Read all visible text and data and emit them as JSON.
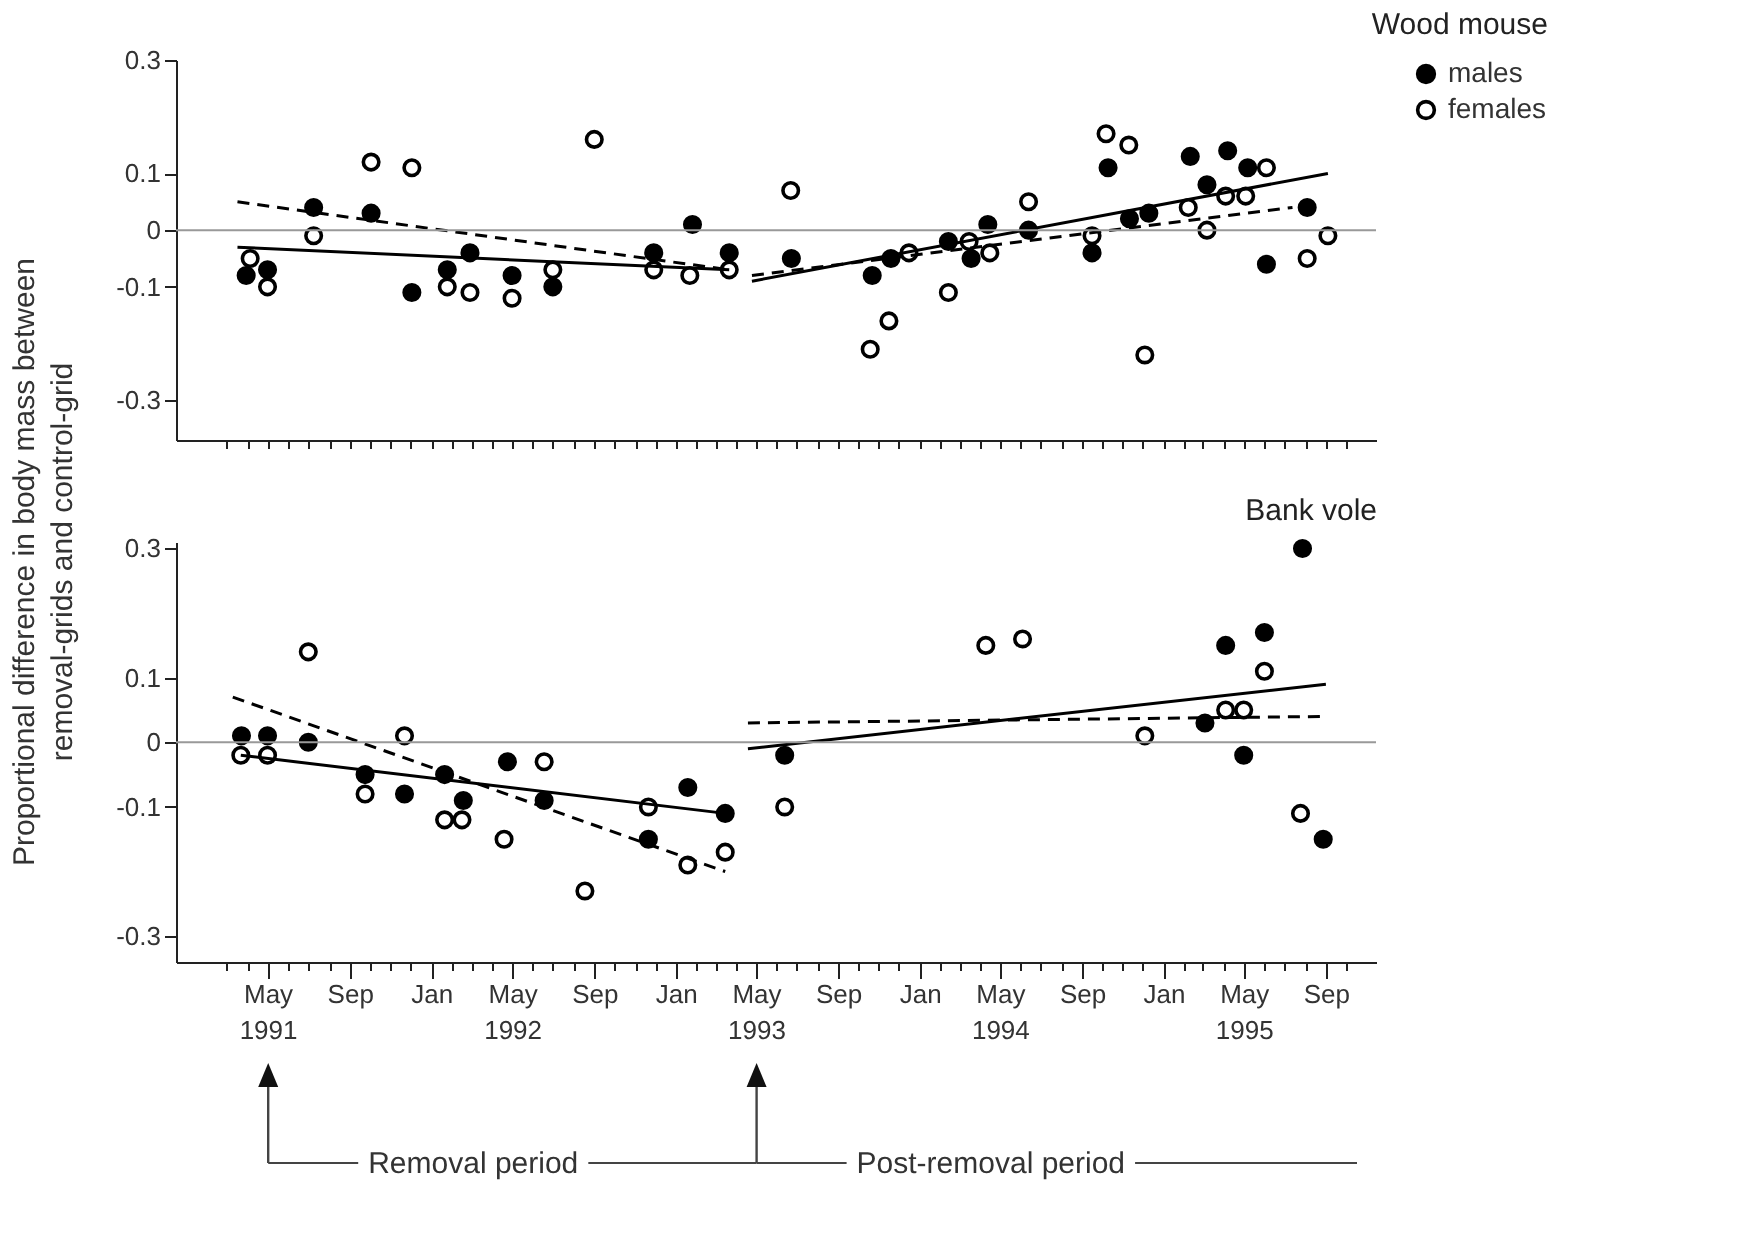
{
  "chart_data": [
    {
      "type": "scatter",
      "title": "Wood mouse",
      "ylabel": "Proportional difference in body mass between removal-grids and control-grid",
      "xlim": [
        "1990-12-15",
        "1995-11-15"
      ],
      "ylim": [
        -0.37,
        0.3
      ],
      "yticks": [
        0.3,
        0.1,
        0,
        -0.1,
        -0.3
      ],
      "tick_labels": "y",
      "legend": "right",
      "grid": false,
      "xticks": [
        {
          "value": "1991-03-01",
          "label": null
        },
        {
          "value": "1991-04-01",
          "label": null
        },
        {
          "value": "1991-05-01",
          "label": null
        },
        {
          "value": "1991-06-01",
          "label": null
        },
        {
          "value": "1991-07-01",
          "label": null
        },
        {
          "value": "1991-08-01",
          "label": null
        },
        {
          "value": "1991-09-01",
          "label": null
        },
        {
          "value": "1991-10-01",
          "label": null
        },
        {
          "value": "1991-11-01",
          "label": null
        },
        {
          "value": "1991-12-01",
          "label": null
        },
        {
          "value": "1992-01-01",
          "label": null
        },
        {
          "value": "1992-02-01",
          "label": null
        },
        {
          "value": "1992-03-01",
          "label": null
        },
        {
          "value": "1992-04-01",
          "label": null
        },
        {
          "value": "1992-05-01",
          "label": null
        },
        {
          "value": "1992-06-01",
          "label": null
        },
        {
          "value": "1992-07-01",
          "label": null
        },
        {
          "value": "1992-08-01",
          "label": null
        },
        {
          "value": "1992-09-01",
          "label": null
        },
        {
          "value": "1992-10-01",
          "label": null
        },
        {
          "value": "1992-11-01",
          "label": null
        },
        {
          "value": "1992-12-01",
          "label": null
        },
        {
          "value": "1993-01-01",
          "label": null
        },
        {
          "value": "1993-02-01",
          "label": null
        },
        {
          "value": "1993-03-01",
          "label": null
        },
        {
          "value": "1993-04-01",
          "label": null
        },
        {
          "value": "1993-05-01",
          "label": null
        },
        {
          "value": "1993-06-01",
          "label": null
        },
        {
          "value": "1993-07-01",
          "label": null
        },
        {
          "value": "1993-08-01",
          "label": null
        },
        {
          "value": "1993-09-01",
          "label": null
        },
        {
          "value": "1993-10-01",
          "label": null
        },
        {
          "value": "1993-11-01",
          "label": null
        },
        {
          "value": "1993-12-01",
          "label": null
        },
        {
          "value": "1994-01-01",
          "label": null
        },
        {
          "value": "1994-02-01",
          "label": null
        },
        {
          "value": "1994-03-01",
          "label": null
        },
        {
          "value": "1994-04-01",
          "label": null
        },
        {
          "value": "1994-05-01",
          "label": null
        },
        {
          "value": "1994-06-01",
          "label": null
        },
        {
          "value": "1994-07-01",
          "label": null
        },
        {
          "value": "1994-08-01",
          "label": null
        },
        {
          "value": "1994-09-01",
          "label": null
        },
        {
          "value": "1994-10-01",
          "label": null
        },
        {
          "value": "1994-11-01",
          "label": null
        },
        {
          "value": "1994-12-01",
          "label": null
        },
        {
          "value": "1995-01-01",
          "label": null
        },
        {
          "value": "1995-02-01",
          "label": null
        },
        {
          "value": "1995-03-01",
          "label": null
        },
        {
          "value": "1995-04-01",
          "label": null
        },
        {
          "value": "1995-05-01",
          "label": null
        },
        {
          "value": "1995-06-01",
          "label": null
        },
        {
          "value": "1995-07-01",
          "label": null
        },
        {
          "value": "1995-08-01",
          "label": null
        },
        {
          "value": "1995-09-01",
          "label": null
        },
        {
          "value": "1995-10-01",
          "label": null
        }
      ],
      "ref_lines": [
        {
          "axis": "y",
          "value": 0,
          "color": "#999999"
        }
      ],
      "series": [
        {
          "name": "males",
          "type": "scatter",
          "color": "#000000",
          "marker": "circle",
          "x": [
            "1991-03-30",
            "1991-05-01",
            "1991-07-09",
            "1991-10-03",
            "1991-12-03",
            "1992-01-25",
            "1992-02-28",
            "1992-05-01",
            "1992-07-01",
            "1992-11-29",
            "1993-01-26",
            "1993-03-22",
            "1993-06-23",
            "1993-10-22",
            "1993-11-19",
            "1994-02-13",
            "1994-03-19",
            "1994-04-13",
            "1994-06-13",
            "1994-09-16",
            "1994-10-10",
            "1994-11-11",
            "1994-12-10",
            "1995-02-10",
            "1995-03-07",
            "1995-04-07",
            "1995-05-07",
            "1995-06-04",
            "1995-08-04"
          ],
          "values": [
            -0.08,
            -0.07,
            0.04,
            0.03,
            -0.11,
            -0.07,
            -0.04,
            -0.08,
            -0.1,
            -0.04,
            0.01,
            -0.04,
            -0.05,
            -0.08,
            -0.05,
            -0.02,
            -0.05,
            0.01,
            0.0,
            -0.04,
            0.11,
            0.02,
            0.03,
            0.13,
            0.08,
            0.14,
            0.11,
            -0.06,
            0.04
          ]
        },
        {
          "name": "females",
          "type": "scatter",
          "color": "#ffffff",
          "marker": "circle",
          "x": [
            "1991-04-05",
            "1991-05-01",
            "1991-07-09",
            "1991-10-03",
            "1991-12-03",
            "1992-01-25",
            "1992-02-28",
            "1992-05-01",
            "1992-07-01",
            "1992-09-01",
            "1992-11-29",
            "1993-01-22",
            "1993-03-22",
            "1993-06-22",
            "1993-10-19",
            "1993-11-16",
            "1993-12-16",
            "1994-02-13",
            "1994-03-16",
            "1994-04-16",
            "1994-06-13",
            "1994-09-16",
            "1994-10-07",
            "1994-11-10",
            "1994-12-04",
            "1995-02-07",
            "1995-03-07",
            "1995-04-04",
            "1995-05-04",
            "1995-06-04",
            "1995-08-04",
            "1995-09-04"
          ],
          "values": [
            -0.05,
            -0.1,
            -0.01,
            0.12,
            0.11,
            -0.1,
            -0.11,
            -0.12,
            -0.07,
            0.16,
            -0.07,
            -0.08,
            -0.07,
            0.07,
            -0.21,
            -0.16,
            -0.04,
            -0.11,
            -0.02,
            -0.04,
            0.05,
            -0.01,
            0.17,
            0.15,
            -0.22,
            0.04,
            0.0,
            0.06,
            0.06,
            0.11,
            -0.05,
            -0.01
          ]
        },
        {
          "type": "line",
          "color": "#000000",
          "line_style": "solid",
          "x": [
            "1991-03-17",
            "1993-03-22"
          ],
          "values": [
            -0.03,
            -0.07
          ]
        },
        {
          "type": "line",
          "color": "#000000",
          "line_style": "solid",
          "x": [
            "1993-04-25",
            "1995-09-04"
          ],
          "values": [
            -0.09,
            0.1
          ]
        },
        {
          "type": "line",
          "color": "#000000",
          "line_style": "dashed",
          "x": [
            "1991-03-17",
            "1993-03-22"
          ],
          "values": [
            0.05,
            -0.07
          ]
        },
        {
          "type": "line",
          "color": "#000000",
          "line_style": "dashed",
          "x": [
            "1993-04-25",
            "1995-07-13"
          ],
          "values": [
            -0.08,
            0.04
          ]
        }
      ]
    },
    {
      "type": "scatter",
      "title": "Bank vole",
      "xlim": [
        "1990-12-15",
        "1995-11-15"
      ],
      "ylim": [
        -0.34,
        0.31
      ],
      "yticks": [
        0.3,
        0.1,
        0,
        -0.1,
        -0.3
      ],
      "grid": false,
      "xticks": [
        {
          "value": "1991-03-01",
          "label": null
        },
        {
          "value": "1991-04-01",
          "label": null
        },
        {
          "value": "1991-05-01",
          "label": "May\n1991"
        },
        {
          "value": "1991-06-01",
          "label": null
        },
        {
          "value": "1991-07-01",
          "label": null
        },
        {
          "value": "1991-08-01",
          "label": null
        },
        {
          "value": "1991-09-01",
          "label": "Sep"
        },
        {
          "value": "1991-10-01",
          "label": null
        },
        {
          "value": "1991-11-01",
          "label": null
        },
        {
          "value": "1991-12-01",
          "label": null
        },
        {
          "value": "1992-01-01",
          "label": "Jan"
        },
        {
          "value": "1992-02-01",
          "label": null
        },
        {
          "value": "1992-03-01",
          "label": null
        },
        {
          "value": "1992-04-01",
          "label": null
        },
        {
          "value": "1992-05-01",
          "label": "May\n1992"
        },
        {
          "value": "1992-06-01",
          "label": null
        },
        {
          "value": "1992-07-01",
          "label": null
        },
        {
          "value": "1992-08-01",
          "label": null
        },
        {
          "value": "1992-09-01",
          "label": "Sep"
        },
        {
          "value": "1992-10-01",
          "label": null
        },
        {
          "value": "1992-11-01",
          "label": null
        },
        {
          "value": "1992-12-01",
          "label": null
        },
        {
          "value": "1993-01-01",
          "label": "Jan"
        },
        {
          "value": "1993-02-01",
          "label": null
        },
        {
          "value": "1993-03-01",
          "label": null
        },
        {
          "value": "1993-04-01",
          "label": null
        },
        {
          "value": "1993-05-01",
          "label": "May\n1993"
        },
        {
          "value": "1993-06-01",
          "label": null
        },
        {
          "value": "1993-07-01",
          "label": null
        },
        {
          "value": "1993-08-01",
          "label": null
        },
        {
          "value": "1993-09-01",
          "label": "Sep"
        },
        {
          "value": "1993-10-01",
          "label": null
        },
        {
          "value": "1993-11-01",
          "label": null
        },
        {
          "value": "1993-12-01",
          "label": null
        },
        {
          "value": "1994-01-01",
          "label": "Jan"
        },
        {
          "value": "1994-02-01",
          "label": null
        },
        {
          "value": "1994-03-01",
          "label": null
        },
        {
          "value": "1994-04-01",
          "label": null
        },
        {
          "value": "1994-05-01",
          "label": "May\n1994"
        },
        {
          "value": "1994-06-01",
          "label": null
        },
        {
          "value": "1994-07-01",
          "label": null
        },
        {
          "value": "1994-08-01",
          "label": null
        },
        {
          "value": "1994-09-01",
          "label": "Sep"
        },
        {
          "value": "1994-10-01",
          "label": null
        },
        {
          "value": "1994-11-01",
          "label": null
        },
        {
          "value": "1994-12-01",
          "label": null
        },
        {
          "value": "1995-01-01",
          "label": "Jan"
        },
        {
          "value": "1995-02-01",
          "label": null
        },
        {
          "value": "1995-03-01",
          "label": null
        },
        {
          "value": "1995-04-01",
          "label": null
        },
        {
          "value": "1995-05-01",
          "label": "May\n1995"
        },
        {
          "value": "1995-06-01",
          "label": null
        },
        {
          "value": "1995-07-01",
          "label": null
        },
        {
          "value": "1995-08-01",
          "label": null
        },
        {
          "value": "1995-09-01",
          "label": "Sep"
        },
        {
          "value": "1995-10-01",
          "label": null
        }
      ],
      "ref_lines": [
        {
          "axis": "y",
          "value": 0,
          "color": "#999999"
        }
      ],
      "annotations": [
        "Removal period",
        "Post-removal period"
      ],
      "series": [
        {
          "type": "scatter",
          "color": "#000000",
          "marker": "circle",
          "x": [
            "1991-03-23",
            "1991-05-01",
            "1991-07-01",
            "1991-09-24",
            "1991-11-22",
            "1992-01-21",
            "1992-02-18",
            "1992-04-24",
            "1992-06-18",
            "1992-11-21",
            "1993-01-19",
            "1993-03-16",
            "1993-06-13",
            "1995-03-04",
            "1995-04-04",
            "1995-05-01",
            "1995-06-01",
            "1995-07-28",
            "1995-08-28"
          ],
          "values": [
            0.01,
            0.01,
            0.0,
            -0.05,
            -0.08,
            -0.05,
            -0.09,
            -0.03,
            -0.09,
            -0.15,
            -0.07,
            -0.11,
            -0.02,
            0.03,
            0.15,
            -0.02,
            0.17,
            0.3,
            -0.15
          ]
        },
        {
          "type": "scatter",
          "color": "#ffffff",
          "marker": "circle",
          "x": [
            "1991-03-22",
            "1991-05-01",
            "1991-07-01",
            "1991-09-24",
            "1991-11-22",
            "1992-01-21",
            "1992-02-16",
            "1992-04-19",
            "1992-06-18",
            "1992-08-18",
            "1992-11-21",
            "1993-01-19",
            "1993-03-16",
            "1993-06-13",
            "1994-04-10",
            "1994-06-04",
            "1994-12-04",
            "1995-04-04",
            "1995-05-01",
            "1995-06-01",
            "1995-07-25"
          ],
          "values": [
            -0.02,
            -0.02,
            0.14,
            -0.08,
            0.01,
            -0.12,
            -0.12,
            -0.15,
            -0.03,
            -0.23,
            -0.1,
            -0.19,
            -0.17,
            -0.1,
            0.15,
            0.16,
            0.01,
            0.05,
            0.05,
            0.11,
            -0.11
          ]
        },
        {
          "type": "line",
          "color": "#000000",
          "line_style": "solid",
          "x": [
            "1991-03-22",
            "1993-03-16"
          ],
          "values": [
            -0.02,
            -0.11
          ]
        },
        {
          "type": "line",
          "color": "#000000",
          "line_style": "solid",
          "x": [
            "1993-04-19",
            "1995-09-01"
          ],
          "values": [
            -0.01,
            0.09
          ]
        },
        {
          "type": "line",
          "color": "#000000",
          "line_style": "dashed",
          "x": [
            "1991-03-10",
            "1993-03-16"
          ],
          "values": [
            0.07,
            -0.2
          ]
        },
        {
          "type": "line",
          "color": "#000000",
          "line_style": "dashed",
          "x": [
            "1993-04-19",
            "1995-08-28"
          ],
          "values": [
            0.03,
            0.04
          ]
        }
      ]
    }
  ]
}
